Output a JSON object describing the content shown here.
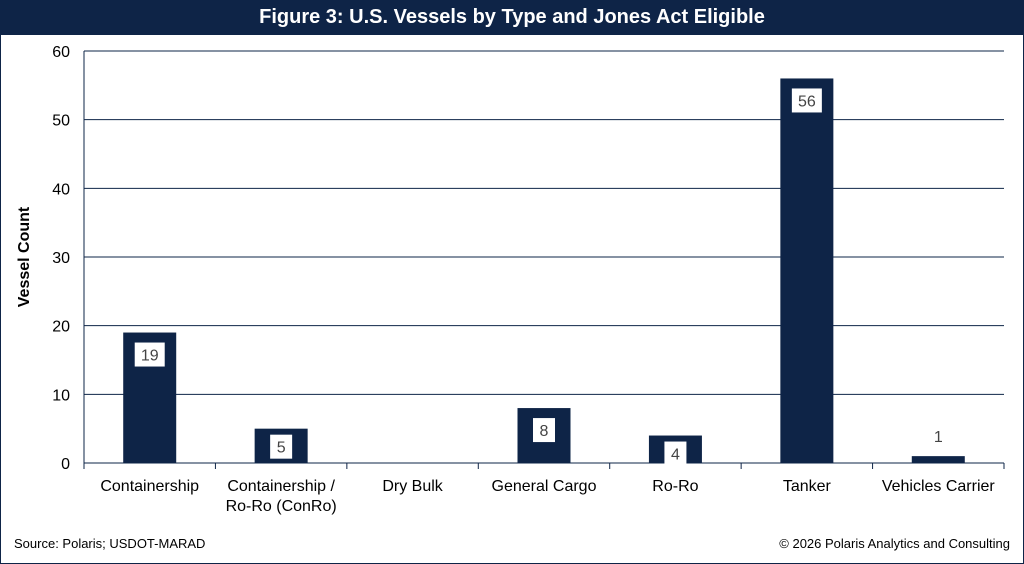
{
  "colors": {
    "navy": "#0e2447",
    "label_box": "#ffffff",
    "label_text": "#444444"
  },
  "chart_data": {
    "type": "bar",
    "title": "Figure 3: U.S. Vessels by Type and Jones Act Eligible",
    "ylabel": "Vessel Count",
    "xlabel": "",
    "ylim": [
      0,
      60
    ],
    "yticks": [
      0,
      10,
      20,
      30,
      40,
      50,
      60
    ],
    "grid": true,
    "categories": [
      [
        "Containership"
      ],
      [
        "Containership /",
        "Ro-Ro (ConRo)"
      ],
      [
        "Dry Bulk"
      ],
      [
        "General Cargo"
      ],
      [
        "Ro-Ro"
      ],
      [
        "Tanker"
      ],
      [
        "Vehicles Carrier"
      ]
    ],
    "values": [
      19,
      5,
      0,
      8,
      4,
      56,
      1
    ],
    "data_labels": [
      "19",
      "5",
      "",
      "8",
      "4",
      "56",
      "1"
    ]
  },
  "footer": {
    "source": "Source: Polaris; USDOT-MARAD",
    "copyright": "© 2026 Polaris Analytics and Consulting"
  }
}
